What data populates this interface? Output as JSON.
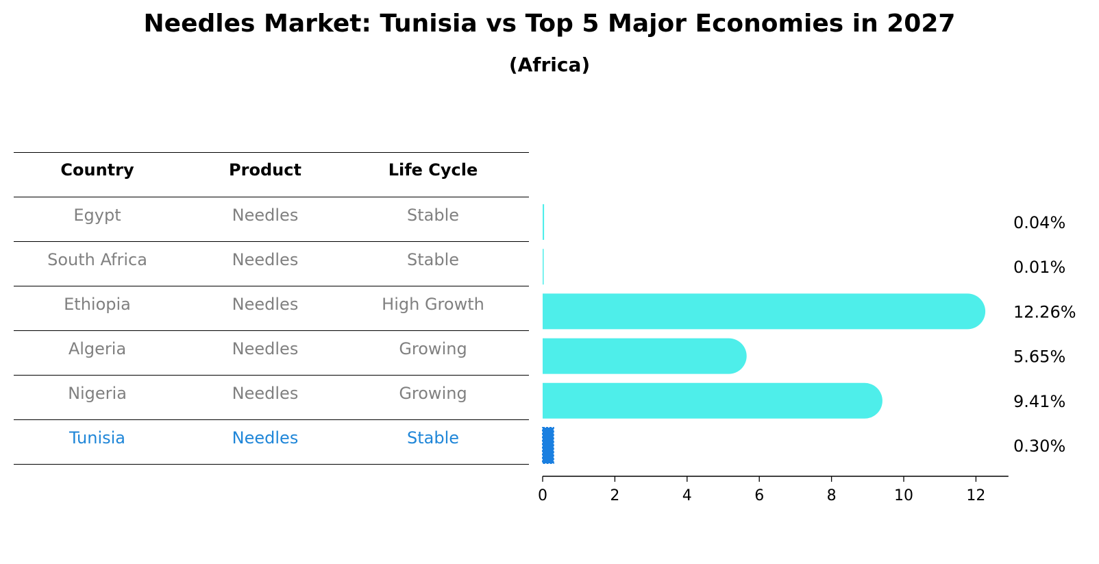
{
  "header": {
    "title": "Needles Market: Tunisia vs Top 5 Major Economies in 2027",
    "subtitle": "(Africa)"
  },
  "table": {
    "columns": [
      "Country",
      "Product",
      "Life Cycle"
    ],
    "rows": [
      {
        "country": "Egypt",
        "product": "Needles",
        "life_cycle": "Stable",
        "highlight": false
      },
      {
        "country": "South Africa",
        "product": "Needles",
        "life_cycle": "Stable",
        "highlight": false
      },
      {
        "country": "Ethiopia",
        "product": "Needles",
        "life_cycle": "High Growth",
        "highlight": false
      },
      {
        "country": "Algeria",
        "product": "Needles",
        "life_cycle": "Growing",
        "highlight": false
      },
      {
        "country": "Nigeria",
        "product": "Needles",
        "life_cycle": "Growing",
        "highlight": false
      },
      {
        "country": "Tunisia",
        "product": "Needles",
        "life_cycle": "Stable",
        "highlight": true
      }
    ]
  },
  "chart_data": {
    "type": "bar",
    "orientation": "horizontal",
    "categories": [
      "Egypt",
      "South Africa",
      "Ethiopia",
      "Algeria",
      "Nigeria",
      "Tunisia"
    ],
    "values": [
      0.04,
      0.01,
      12.26,
      5.65,
      9.41,
      0.3
    ],
    "value_labels": [
      "0.04%",
      "0.01%",
      "12.26%",
      "5.65%",
      "9.41%",
      "0.30%"
    ],
    "highlight_category": "Tunisia",
    "xlim": [
      0,
      12.9
    ],
    "xticks": [
      0,
      2,
      4,
      6,
      8,
      10,
      12
    ],
    "grid": false,
    "colors": {
      "bar": "#4eeeea",
      "highlight_bar": "#1a7fe0",
      "highlight_text": "#1f86d8",
      "muted_text": "#808080"
    }
  }
}
